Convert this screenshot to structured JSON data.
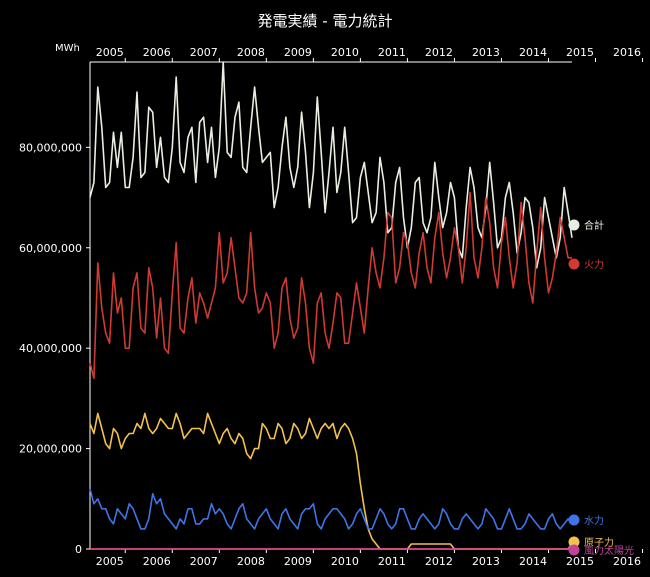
{
  "chart_data": {
    "type": "line",
    "title": "発電実績 - 電力統計",
    "ylabel": "MWh",
    "x_range": [
      "2004-04",
      "2016-03"
    ],
    "x_ticks": [
      "2005",
      "2006",
      "2007",
      "2008",
      "2009",
      "2010",
      "2011",
      "2012",
      "2013",
      "2014",
      "2015",
      "2016"
    ],
    "y_ticks": [
      "0",
      "20,000,000",
      "40,000,000",
      "60,000,000",
      "80,000,000"
    ],
    "y_tick_values": [
      0,
      20000000,
      40000000,
      60000000,
      80000000
    ],
    "ylim": [
      0,
      97000000
    ],
    "grid": false,
    "legend_position": "right",
    "series": [
      {
        "name": "合計",
        "color": "#e8efe0",
        "values": [
          70,
          73,
          92,
          84,
          72,
          73,
          83,
          76,
          83,
          72,
          72,
          78,
          91,
          74,
          75,
          88,
          87,
          76,
          82,
          74,
          73,
          80,
          94,
          77,
          75,
          82,
          84,
          73,
          85,
          86,
          77,
          84,
          74,
          80,
          97,
          79,
          78,
          86,
          89,
          76,
          75,
          84,
          92,
          84,
          77,
          78,
          79,
          68,
          72,
          80,
          86,
          76,
          72,
          76,
          87,
          79,
          68,
          75,
          90,
          79,
          67,
          75,
          84,
          71,
          75,
          84,
          75,
          65,
          66,
          74,
          77,
          71,
          65,
          67,
          78,
          73,
          63,
          64,
          73,
          76,
          66,
          60,
          64,
          73,
          74,
          65,
          63,
          66,
          77,
          70,
          64,
          67,
          73,
          70,
          60,
          58,
          68,
          76,
          72,
          64,
          62,
          68,
          77,
          69,
          60,
          62,
          70,
          73,
          67,
          59,
          63,
          70,
          69,
          64,
          56,
          60,
          70,
          66,
          62,
          58,
          62,
          72,
          67,
          62
        ]
      },
      {
        "name": "火力",
        "color": "#d03a32",
        "values": [
          37,
          34,
          57,
          48,
          43,
          41,
          55,
          47,
          50,
          40,
          40,
          52,
          55,
          44,
          43,
          56,
          52,
          42,
          50,
          40,
          39,
          51,
          61,
          44,
          43,
          50,
          54,
          45,
          51,
          49,
          46,
          49,
          52,
          63,
          53,
          55,
          62,
          56,
          50,
          49,
          51,
          63,
          52,
          47,
          48,
          51,
          49,
          40,
          43,
          52,
          54,
          46,
          42,
          44,
          54,
          49,
          40,
          37,
          49,
          51,
          43,
          40,
          45,
          51,
          50,
          41,
          41,
          47,
          53,
          48,
          43,
          52,
          60,
          55,
          52,
          58,
          67,
          66,
          53,
          56,
          63,
          61,
          55,
          52,
          59,
          63,
          56,
          53,
          62,
          67,
          59,
          54,
          58,
          64,
          60,
          53,
          60,
          71,
          58,
          54,
          60,
          70,
          65,
          56,
          52,
          61,
          66,
          58,
          52,
          57,
          69,
          62,
          53,
          49,
          59,
          68,
          58,
          51,
          54,
          59,
          66,
          62,
          58,
          58
        ]
      },
      {
        "name": "原子力",
        "color": "#f2c14e",
        "values": [
          25,
          23,
          27,
          24,
          21,
          20,
          24,
          23,
          20,
          22,
          23,
          23,
          25,
          24,
          27,
          24,
          23,
          24,
          26,
          25,
          24,
          24,
          27,
          25,
          22,
          23,
          24,
          24,
          24,
          23,
          27,
          25,
          23,
          21,
          23,
          24,
          22,
          21,
          23,
          22,
          19,
          18,
          20,
          20,
          25,
          24,
          22,
          22,
          25,
          24,
          21,
          22,
          25,
          24,
          22,
          23,
          26,
          24,
          22,
          24,
          25,
          24,
          25,
          22,
          24,
          25,
          24,
          22,
          19,
          13,
          8,
          4,
          2,
          1,
          0,
          0,
          0,
          0,
          0,
          0,
          0,
          0,
          1,
          1,
          1,
          1,
          1,
          1,
          1,
          1,
          1,
          1,
          1,
          0,
          0,
          0,
          0,
          0,
          0,
          0,
          0,
          0,
          0,
          0,
          0,
          0,
          0,
          0,
          0,
          0,
          0,
          0,
          0,
          0,
          0,
          0,
          0,
          0,
          0,
          0,
          0,
          0,
          0,
          1
        ]
      },
      {
        "name": "水力",
        "color": "#3f74e8",
        "values": [
          12,
          9,
          10,
          8,
          8,
          6,
          5,
          8,
          7,
          6,
          9,
          8,
          6,
          4,
          4,
          6,
          11,
          9,
          10,
          7,
          6,
          5,
          4,
          6,
          5,
          8,
          8,
          5,
          5,
          6,
          6,
          9,
          7,
          8,
          7,
          5,
          4,
          6,
          8,
          9,
          6,
          5,
          4,
          6,
          7,
          8,
          6,
          5,
          4,
          7,
          8,
          6,
          5,
          4,
          7,
          8,
          8,
          9,
          5,
          4,
          6,
          7,
          8,
          8,
          7,
          6,
          4,
          5,
          7,
          8,
          6,
          4,
          4,
          6,
          8,
          7,
          5,
          4,
          5,
          8,
          8,
          6,
          4,
          4,
          6,
          7,
          6,
          5,
          4,
          5,
          8,
          7,
          5,
          4,
          4,
          6,
          7,
          6,
          5,
          4,
          5,
          8,
          7,
          6,
          4,
          4,
          6,
          8,
          6,
          4,
          4,
          5,
          7,
          6,
          5,
          4,
          4,
          6,
          7,
          5,
          4,
          5,
          6,
          5
        ]
      },
      {
        "name": "風力",
        "color": "#c2449a",
        "values": [
          0,
          0,
          0,
          0,
          0,
          0,
          0,
          0,
          0,
          0,
          0,
          0,
          0,
          0,
          0,
          0,
          0,
          0,
          0,
          0,
          0,
          0,
          0,
          0,
          0,
          0,
          0,
          0,
          0,
          0,
          0,
          0,
          0,
          0,
          0,
          0,
          0,
          0,
          0,
          0,
          0,
          0,
          0,
          0,
          0,
          0,
          0,
          0,
          0,
          0,
          0,
          0,
          0,
          0,
          0,
          0,
          0,
          0,
          0,
          0,
          0,
          0,
          0,
          0,
          0,
          0,
          0,
          0,
          0,
          0,
          0,
          0,
          0,
          0,
          0,
          0,
          0,
          0,
          0,
          0,
          0,
          0,
          0,
          0,
          0,
          0,
          0,
          0,
          0,
          0,
          0,
          0,
          0,
          0,
          0,
          0,
          0,
          0,
          0,
          0,
          0,
          0,
          0,
          0,
          0,
          0,
          0,
          0,
          0,
          0,
          0,
          0,
          0,
          0,
          0,
          0,
          0,
          0,
          0,
          0,
          0,
          0,
          0,
          0
        ]
      },
      {
        "name": "太陽光",
        "color": "#e24a8a",
        "values": [
          0,
          0,
          0,
          0,
          0,
          0,
          0,
          0,
          0,
          0,
          0,
          0,
          0,
          0,
          0,
          0,
          0,
          0,
          0,
          0,
          0,
          0,
          0,
          0,
          0,
          0,
          0,
          0,
          0,
          0,
          0,
          0,
          0,
          0,
          0,
          0,
          0,
          0,
          0,
          0,
          0,
          0,
          0,
          0,
          0,
          0,
          0,
          0,
          0,
          0,
          0,
          0,
          0,
          0,
          0,
          0,
          0,
          0,
          0,
          0,
          0,
          0,
          0,
          0,
          0,
          0,
          0,
          0,
          0,
          0,
          0,
          0,
          0,
          0,
          0,
          0,
          0,
          0,
          0,
          0,
          0,
          0,
          0,
          0,
          0,
          0,
          0,
          0,
          0,
          0,
          0,
          0,
          0,
          0,
          0,
          0,
          0,
          0,
          0,
          0,
          0,
          0,
          0,
          0,
          0,
          0,
          0,
          0,
          0,
          0,
          0,
          0,
          0,
          0,
          0,
          0,
          0,
          0,
          0,
          0,
          0,
          0,
          0,
          0
        ]
      }
    ],
    "legend_labels": {
      "合計": "合計",
      "火力": "火力",
      "水力": "水力",
      "原子力": "原子力",
      "風力_太陽光": "風力太陽光"
    }
  }
}
